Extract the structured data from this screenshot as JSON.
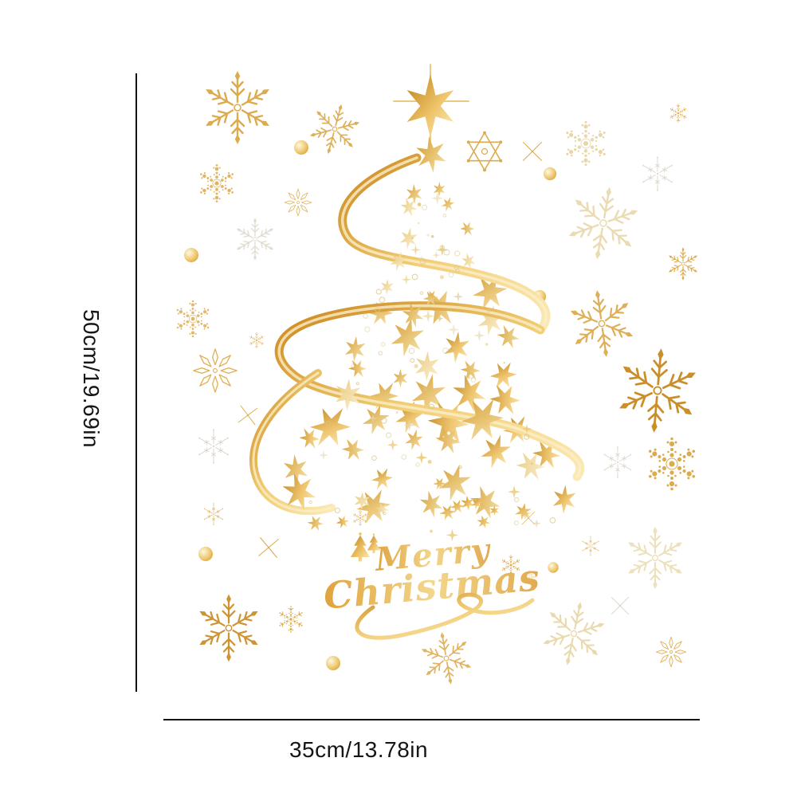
{
  "diagram": {
    "height_label": "50cm/19.69in",
    "width_label": "35cm/13.78in"
  },
  "artwork": {
    "merry_text": "Merry",
    "christmas_text": "Christmas",
    "description": "Gold star christmas tree wall sticker with snowflakes",
    "icons": [
      "star-tree",
      "tree-top-star-icon",
      "ribbon-swirl",
      "snowflake-ornate-icon",
      "snowflake-dotted-icon",
      "snowflake-thin-icon",
      "snowflake-flower-icon",
      "sparkle-x-icon",
      "bauble-icon",
      "mini-christmas-tree-icon"
    ]
  },
  "colors": {
    "background": "#ffffff",
    "measure_line": "#141414",
    "label_text": "#161616",
    "gold_deep": "#c8891f",
    "gold_mid": "#d8a23b",
    "gold_pale": "#e6d3a1",
    "silver_pale": "#d6cfc0",
    "ribbon_gold": "#e3aa45"
  }
}
